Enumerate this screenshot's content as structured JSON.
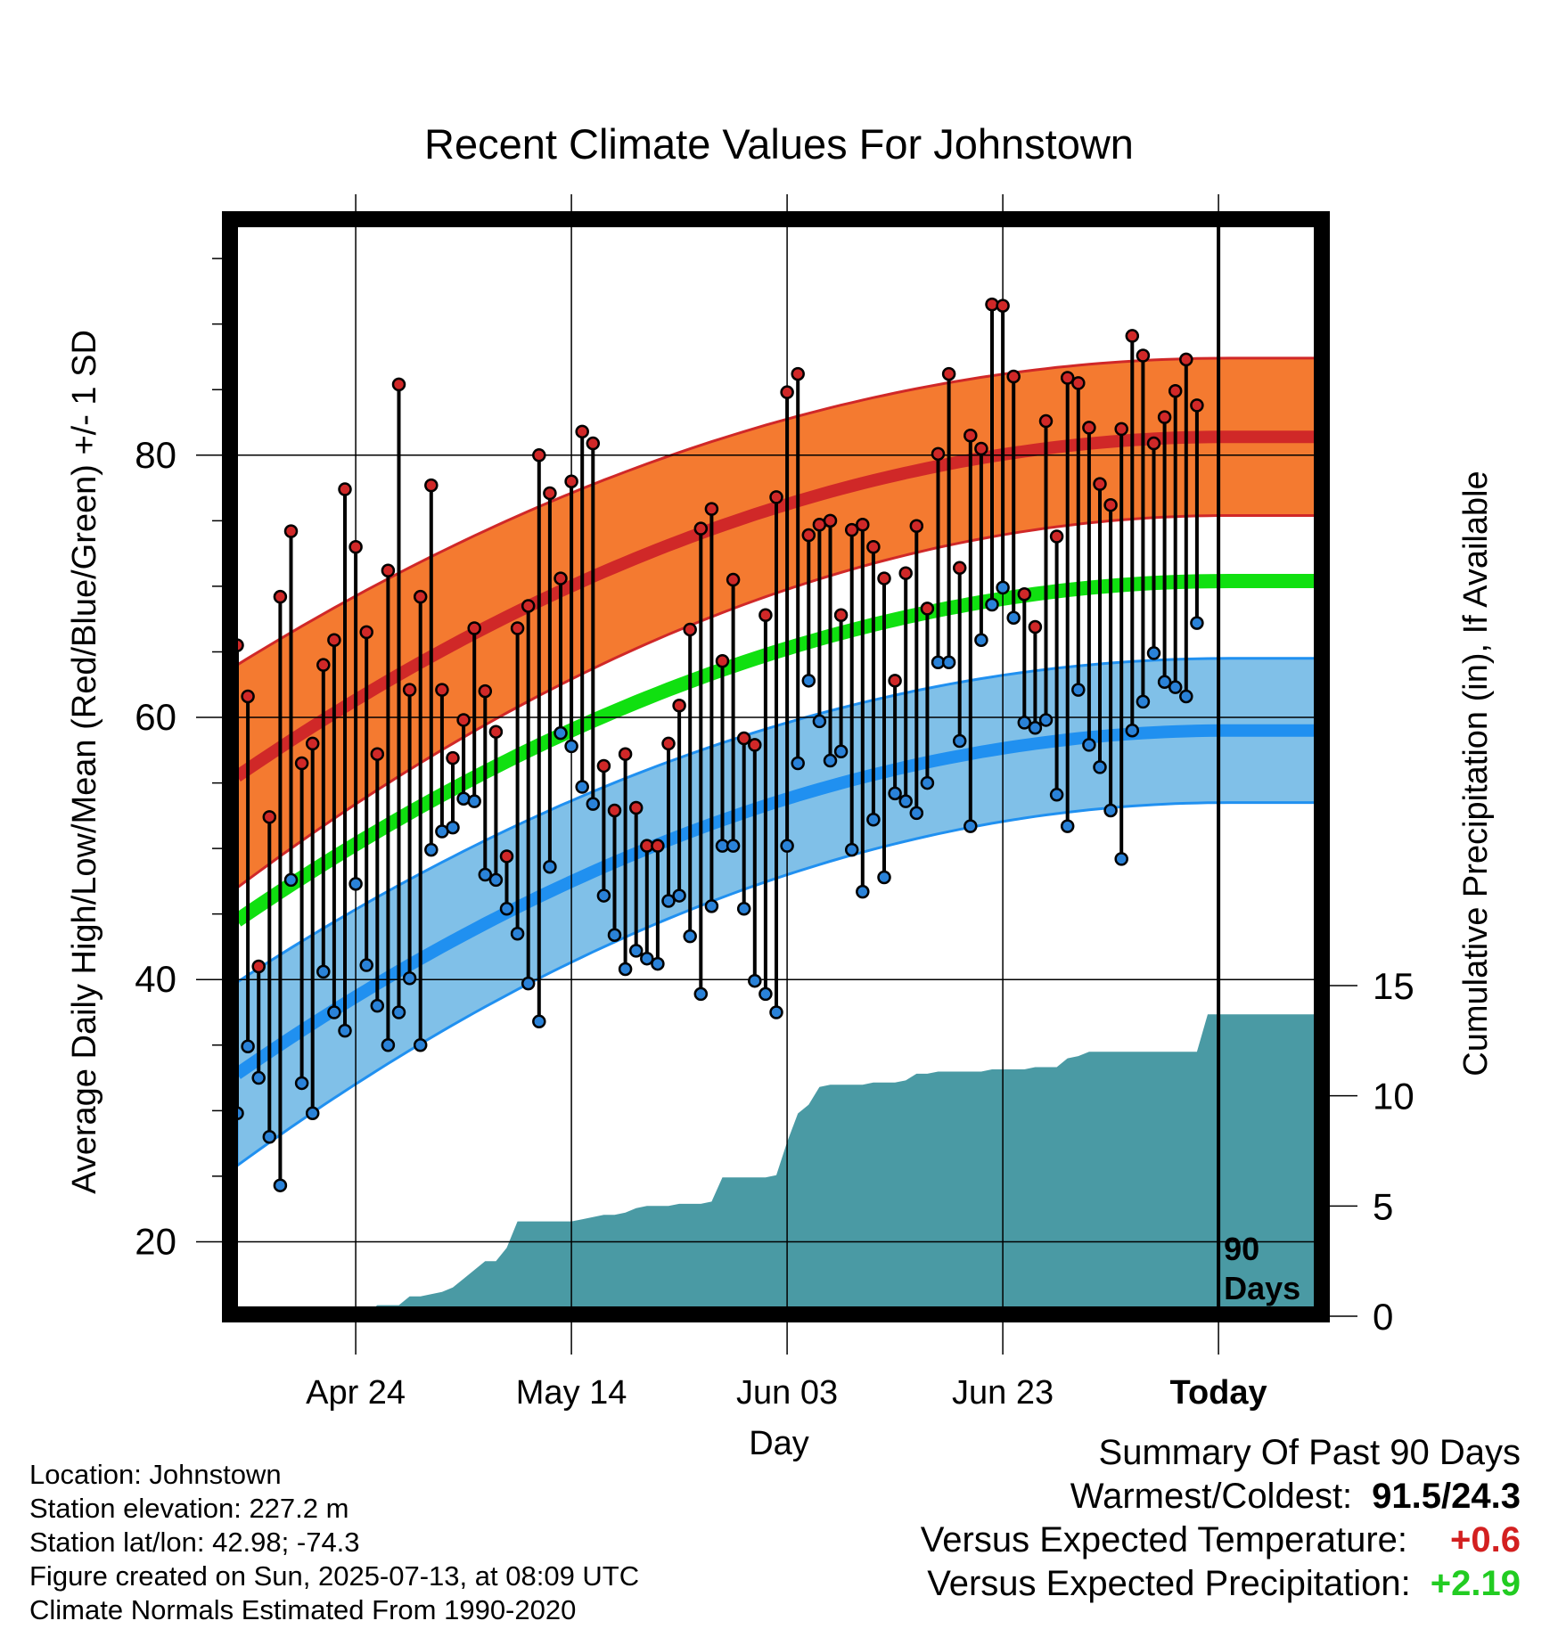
{
  "title": "Recent Climate Values For Johnstown",
  "y_left_label": "Average Daily High/Low/Mean (Red/Blue/Green) +/- 1 SD",
  "y_right_label": "Cumulative Precipitation (in), If Available",
  "x_label": "Day",
  "today_marker_label": "90 Days",
  "info": {
    "location": "Location: Johnstown",
    "elevation": "Station elevation: 227.2 m",
    "latlon": "Station lat/lon: 42.98; -74.3",
    "created": "Figure created on Sun, 2025-07-13, at 08:09 UTC",
    "normals": "Climate Normals Estimated From 1990-2020"
  },
  "summary": {
    "heading": "Summary Of Past 90 Days",
    "warm_cold_label": "Warmest/Coldest:",
    "warm_cold_value": "91.5/24.3",
    "temp_label": "Versus Expected Temperature:",
    "temp_value": "+0.6",
    "temp_color": "#d32020",
    "precip_label": "Versus Expected Precipitation:",
    "precip_value": "+2.19",
    "precip_color": "#22cc22"
  },
  "colors": {
    "high_band": "#f47a30",
    "high_mean": "#d02828",
    "low_band": "#80c0e8",
    "low_mean": "#2090f0",
    "mean": "#10e010",
    "precip": "#4a9aa4",
    "high_dot": "#d02828",
    "low_dot": "#2a82d8"
  },
  "chart_data": {
    "type": "line",
    "title": "Recent Climate Values For Johnstown",
    "xlabel": "Day",
    "ylabel": "Average Daily High/Low/Mean (Red/Blue/Green) +/- 1 SD",
    "y2label": "Cumulative Precipitation (in), If Available",
    "x_tick_labels": [
      "Apr 24",
      "May 14",
      "Jun 03",
      "Jun 23",
      "Today"
    ],
    "x_tick_days": [
      12,
      32,
      52,
      72,
      92
    ],
    "xlim": [
      1,
      101
    ],
    "ylim": [
      15,
      98
    ],
    "y_ticks": [
      20,
      40,
      60,
      80
    ],
    "y2lim": [
      0,
      15
    ],
    "y2_ticks": [
      0,
      5,
      10,
      15
    ],
    "grid": true,
    "today_day": 92,
    "normals": {
      "high_mean": [
        55.5,
        81.4
      ],
      "high_sd": [
        8.5,
        6.0
      ],
      "low_mean": [
        32.8,
        59.0
      ],
      "low_sd": [
        7.0,
        5.5
      ],
      "mean": [
        44.5,
        70.4
      ],
      "curve_day": 93
    },
    "daily_high": [
      65.5,
      61.6,
      41.0,
      52.4,
      69.2,
      74.2,
      56.5,
      58.0,
      64.0,
      65.9,
      77.4,
      73.0,
      66.5,
      57.2,
      71.2,
      85.4,
      62.1,
      69.2,
      77.7,
      62.1,
      56.9,
      59.8,
      66.8,
      62.0,
      58.9,
      49.4,
      66.8,
      68.5,
      80.0,
      77.1,
      70.6,
      78.0,
      81.8,
      80.9,
      56.3,
      52.9,
      57.2,
      53.1,
      50.2,
      50.2,
      58.0,
      60.9,
      66.7,
      74.4,
      75.9,
      64.3,
      70.5,
      58.4,
      57.9,
      67.8,
      76.8,
      84.8,
      86.2,
      73.9,
      74.7,
      75.0,
      67.8,
      74.3,
      74.7,
      73.0,
      70.6,
      62.8,
      71.0,
      74.6,
      68.3,
      80.1,
      86.2,
      71.4,
      81.5,
      80.5,
      91.5,
      91.4,
      86.0,
      69.4,
      66.9,
      82.6,
      73.8,
      85.9,
      85.5,
      82.1,
      77.8,
      76.2,
      82.0,
      89.1,
      87.6,
      80.9,
      82.9,
      84.9,
      87.3,
      83.8
    ],
    "daily_low": [
      29.8,
      34.9,
      32.5,
      28.0,
      24.3,
      47.6,
      32.1,
      29.8,
      40.6,
      37.5,
      36.1,
      47.3,
      41.1,
      38.0,
      35.0,
      37.5,
      40.1,
      35.0,
      49.9,
      51.3,
      51.6,
      53.8,
      53.6,
      48.0,
      47.6,
      45.4,
      43.5,
      39.7,
      36.8,
      48.6,
      58.8,
      57.8,
      54.7,
      53.4,
      46.4,
      43.4,
      40.8,
      42.2,
      41.6,
      41.2,
      46.0,
      46.4,
      43.3,
      38.9,
      45.6,
      50.2,
      50.2,
      45.4,
      39.9,
      38.9,
      37.5,
      50.2,
      56.5,
      62.8,
      59.7,
      56.7,
      57.4,
      49.9,
      46.7,
      52.2,
      47.8,
      54.2,
      53.6,
      52.7,
      55.0,
      64.2,
      64.2,
      58.2,
      51.7,
      65.9,
      68.6,
      69.9,
      67.6,
      59.6,
      59.2,
      59.8,
      54.1,
      51.7,
      62.1,
      57.9,
      56.2,
      52.9,
      49.2,
      59.0,
      61.2,
      64.9,
      62.7,
      62.3,
      61.6,
      67.2
    ],
    "precip_cumulative": [
      [
        1,
        0
      ],
      [
        12,
        0
      ],
      [
        13,
        0.1
      ],
      [
        14,
        0.5
      ],
      [
        15,
        0.5
      ],
      [
        16,
        0.5
      ],
      [
        17,
        0.9
      ],
      [
        18,
        0.9
      ],
      [
        19,
        1.0
      ],
      [
        20,
        1.1
      ],
      [
        21,
        1.3
      ],
      [
        22,
        1.7
      ],
      [
        23,
        2.1
      ],
      [
        24,
        2.5
      ],
      [
        25,
        2.5
      ],
      [
        26,
        3.1
      ],
      [
        27,
        4.3
      ],
      [
        28,
        4.3
      ],
      [
        29,
        4.3
      ],
      [
        30,
        4.3
      ],
      [
        31,
        4.3
      ],
      [
        32,
        4.3
      ],
      [
        33,
        4.4
      ],
      [
        34,
        4.5
      ],
      [
        35,
        4.6
      ],
      [
        36,
        4.6
      ],
      [
        37,
        4.7
      ],
      [
        38,
        4.9
      ],
      [
        39,
        5.0
      ],
      [
        40,
        5.0
      ],
      [
        41,
        5.0
      ],
      [
        42,
        5.1
      ],
      [
        43,
        5.1
      ],
      [
        44,
        5.1
      ],
      [
        45,
        5.2
      ],
      [
        46,
        6.3
      ],
      [
        47,
        6.3
      ],
      [
        48,
        6.3
      ],
      [
        49,
        6.3
      ],
      [
        50,
        6.3
      ],
      [
        51,
        6.4
      ],
      [
        52,
        7.9
      ],
      [
        53,
        9.2
      ],
      [
        54,
        9.6
      ],
      [
        55,
        10.4
      ],
      [
        56,
        10.5
      ],
      [
        57,
        10.5
      ],
      [
        58,
        10.5
      ],
      [
        59,
        10.5
      ],
      [
        60,
        10.6
      ],
      [
        61,
        10.6
      ],
      [
        62,
        10.6
      ],
      [
        63,
        10.7
      ],
      [
        64,
        11.0
      ],
      [
        65,
        11.0
      ],
      [
        66,
        11.1
      ],
      [
        67,
        11.1
      ],
      [
        68,
        11.1
      ],
      [
        69,
        11.1
      ],
      [
        70,
        11.1
      ],
      [
        71,
        11.2
      ],
      [
        72,
        11.2
      ],
      [
        73,
        11.2
      ],
      [
        74,
        11.2
      ],
      [
        75,
        11.3
      ],
      [
        76,
        11.3
      ],
      [
        77,
        11.3
      ],
      [
        78,
        11.7
      ],
      [
        79,
        11.8
      ],
      [
        80,
        12.0
      ],
      [
        81,
        12.0
      ],
      [
        82,
        12.0
      ],
      [
        83,
        12.0
      ],
      [
        84,
        12.0
      ],
      [
        85,
        12.0
      ],
      [
        86,
        12.0
      ],
      [
        87,
        12.0
      ],
      [
        88,
        12.0
      ],
      [
        89,
        12.0
      ],
      [
        90,
        12.0
      ],
      [
        91,
        13.7
      ],
      [
        92,
        13.7
      ],
      [
        101,
        13.7
      ]
    ]
  }
}
